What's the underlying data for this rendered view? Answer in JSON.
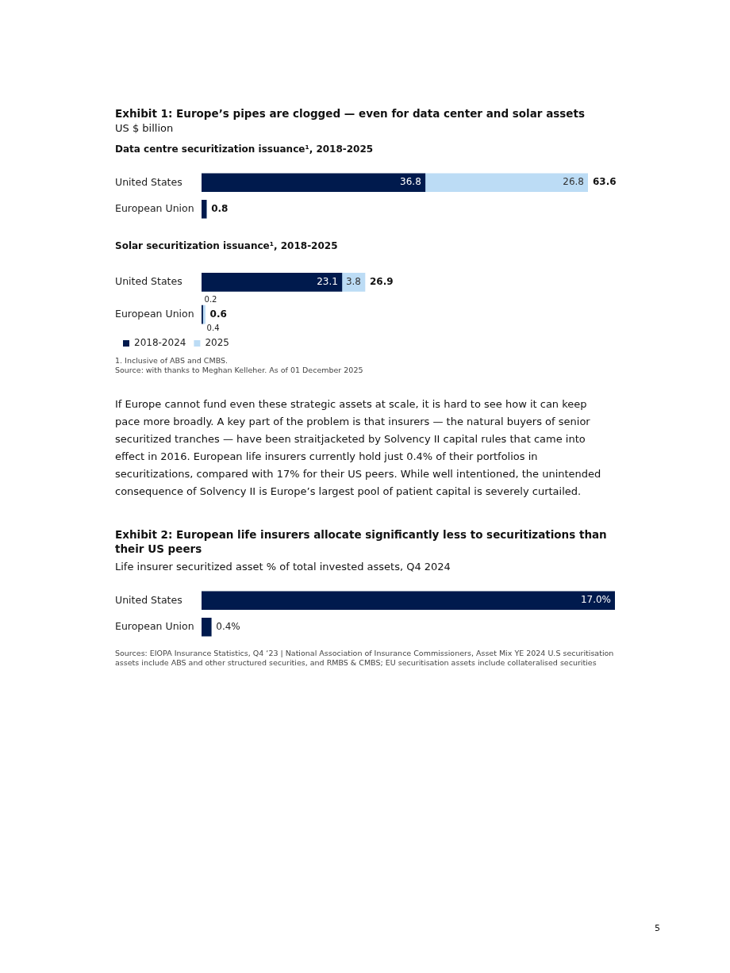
{
  "chart_data": [
    {
      "type": "other",
      "title": "Exhibit 1: Europe’s pipes are clogged — even for data center and solar assets",
      "subtitle": "US $ billion"
    },
    {
      "type": "bar",
      "title": "Data centre securitization issuance¹, 2018-2025",
      "orientation": "horizontal",
      "stacked": true,
      "tick_labels": "y",
      "categories": [
        "United States",
        "European Union"
      ],
      "series": [
        {
          "color": "#001a4d",
          "values": [
            36.8,
            0.8
          ],
          "value_labels": [
            "36.8",
            null
          ]
        },
        {
          "color": "#bcdcf5",
          "values": [
            26.8,
            0
          ],
          "value_labels": [
            "26.8",
            null
          ]
        }
      ],
      "totals": [
        "63.6",
        "0.8"
      ]
    },
    {
      "type": "bar",
      "title": "Solar securitization issuance¹, 2018-2025",
      "orientation": "horizontal",
      "stacked": true,
      "tick_labels": "y",
      "categories": [
        "United States",
        "European Union"
      ],
      "data_labels": true,
      "legend": "bottom",
      "series": [
        {
          "name": "2018-2024",
          "color": "#001a4d",
          "values": [
            23.1,
            0.2
          ]
        },
        {
          "name": "2025",
          "color": "#bcdcf5",
          "values": [
            3.8,
            0.4
          ]
        }
      ],
      "totals": [
        "26.9",
        "0.6"
      ],
      "annotations": [
        "1. Inclusive of ABS and CMBS.",
        "Source: with thanks to Meghan Kelleher. As of 01 December 2025"
      ]
    },
    {
      "type": "other",
      "annotations": [
        "If Europe cannot fund even these strategic assets at scale, it is hard to see how it can keep pace more broadly. A key part of the problem is that insurers — the natural buyers of senior securitized tranches — have been straitjacketed by Solvency II capital rules that came into effect in 2016. European life insurers currently hold just 0.4% of their portfolios in securitizations, compared with 17% for their US peers. While well intentioned, the unintended consequence of Solvency II is Europe’s largest pool of patient capital is severely curtailed."
      ]
    },
    {
      "type": "bar",
      "title": "Exhibit 2: European life insurers allocate significantly less to securitizations than their US peers",
      "subtitle": "Life insurer securitized asset % of total invested assets, Q4 2024",
      "orientation": "horizontal",
      "tick_labels": "y",
      "categories": [
        "United States",
        "European Union"
      ],
      "color": "#001a4d",
      "values": [
        17.0,
        0.4
      ],
      "value_labels": [
        "17.0%",
        "0.4%"
      ],
      "annotations": [
        "Sources: EIOPA Insurance Statistics, Q4 ‘23 | National Association of Insurance Commissioners, Asset Mix YE 2024 U.S securitisation assets include ABS and other structured securities, and RMBS & CMBS; EU securitisation assets include collateralised securities"
      ]
    },
    {
      "type": "other",
      "annotations": [
        "5"
      ]
    }
  ]
}
